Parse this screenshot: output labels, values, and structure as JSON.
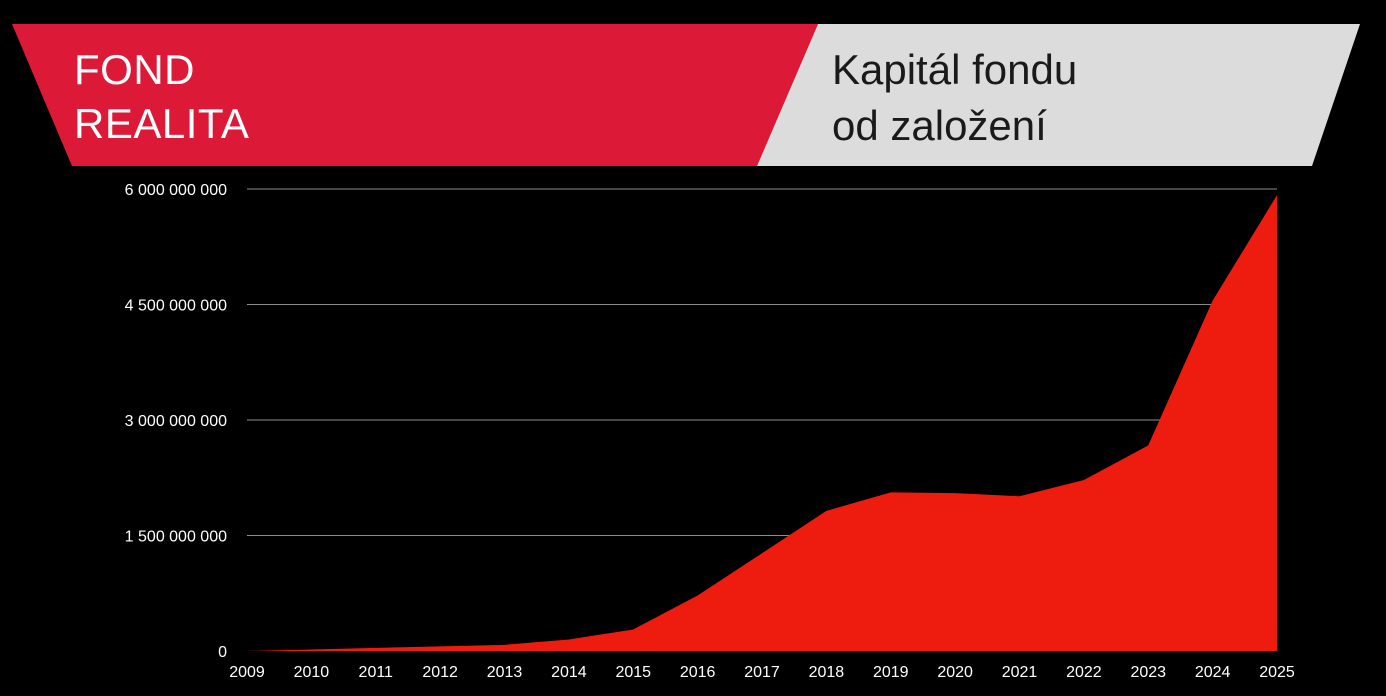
{
  "header": {
    "brand": [
      "FOND",
      "REALITA"
    ],
    "subtitle": [
      "Kapitál fondu",
      "od založení"
    ]
  },
  "colors": {
    "background": "#000000",
    "brand_red": "#DC1A37",
    "subtitle_bg": "#DCDCDC",
    "area_fill": "#EE1C0F",
    "gridline": "#8C8C8C",
    "text_light": "#FFFFFF",
    "text_dark": "#1A1A1A"
  },
  "chart_data": {
    "type": "area",
    "title": "Kapitál fondu od založení",
    "xlabel": "",
    "ylabel": "",
    "x": [
      "2009",
      "2010",
      "2011",
      "2012",
      "2013",
      "2014",
      "2015",
      "2016",
      "2017",
      "2018",
      "2019",
      "2020",
      "2021",
      "2022",
      "2023",
      "2024",
      "2025"
    ],
    "series": [
      {
        "values": [
          0,
          20000000,
          40000000,
          60000000,
          80000000,
          150000000,
          280000000,
          720000000,
          1270000000,
          1820000000,
          2060000000,
          2050000000,
          2010000000,
          2220000000,
          2670000000,
          4550000000,
          5920000000
        ]
      }
    ],
    "ylim": [
      0,
      6000000000
    ],
    "y_ticks": [
      0,
      1500000000,
      3000000000,
      4500000000,
      6000000000
    ],
    "y_tick_labels": [
      "0",
      "1 500 000 000",
      "3 000 000 000",
      "4 500 000 000",
      "6 000 000 000"
    ],
    "grid": true,
    "legend": "none"
  }
}
